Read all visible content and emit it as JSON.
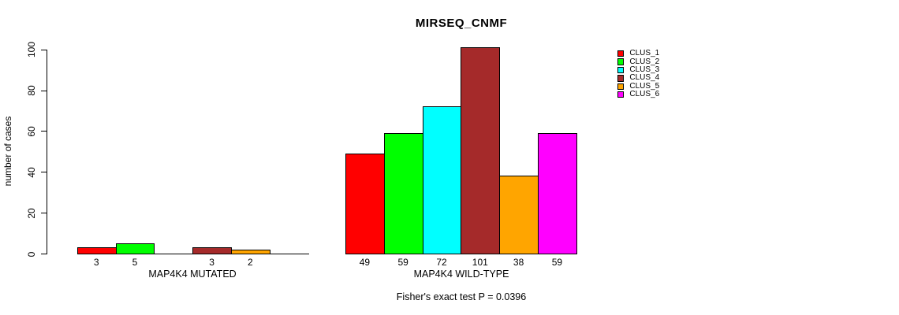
{
  "chart_data": {
    "type": "bar",
    "title": "MIRSEQ_CNMF",
    "ylabel": "number of cases",
    "ylim": [
      0,
      100
    ],
    "yticks": [
      0,
      20,
      40,
      60,
      80,
      100
    ],
    "grid": false,
    "legend_position": "right",
    "categories": [
      "MAP4K4 MUTATED",
      "MAP4K4 WILD-TYPE"
    ],
    "series": [
      {
        "name": "CLUS_1",
        "color": "#ff0000",
        "values": [
          3,
          49
        ]
      },
      {
        "name": "CLUS_2",
        "color": "#00ff00",
        "values": [
          5,
          59
        ]
      },
      {
        "name": "CLUS_3",
        "color": "#00ffff",
        "values": [
          0,
          72
        ]
      },
      {
        "name": "CLUS_4",
        "color": "#a52a2a",
        "values": [
          3,
          101
        ]
      },
      {
        "name": "CLUS_5",
        "color": "#ffa500",
        "values": [
          2,
          38
        ]
      },
      {
        "name": "CLUS_6",
        "color": "#ff00ff",
        "values": [
          0,
          59
        ]
      }
    ],
    "bar_value_labels": [
      [
        "3",
        "5",
        "",
        "3",
        "2",
        ""
      ],
      [
        "49",
        "59",
        "72",
        "101",
        "38",
        "59"
      ]
    ],
    "annotation": "Fisher's exact test P = 0.0396"
  },
  "legend": {
    "items": [
      {
        "label": "CLUS_1",
        "color": "#ff0000"
      },
      {
        "label": "CLUS_2",
        "color": "#00ff00"
      },
      {
        "label": "CLUS_3",
        "color": "#00ffff"
      },
      {
        "label": "CLUS_4",
        "color": "#a52a2a"
      },
      {
        "label": "CLUS_5",
        "color": "#ffa500"
      },
      {
        "label": "CLUS_6",
        "color": "#ff00ff"
      }
    ]
  }
}
